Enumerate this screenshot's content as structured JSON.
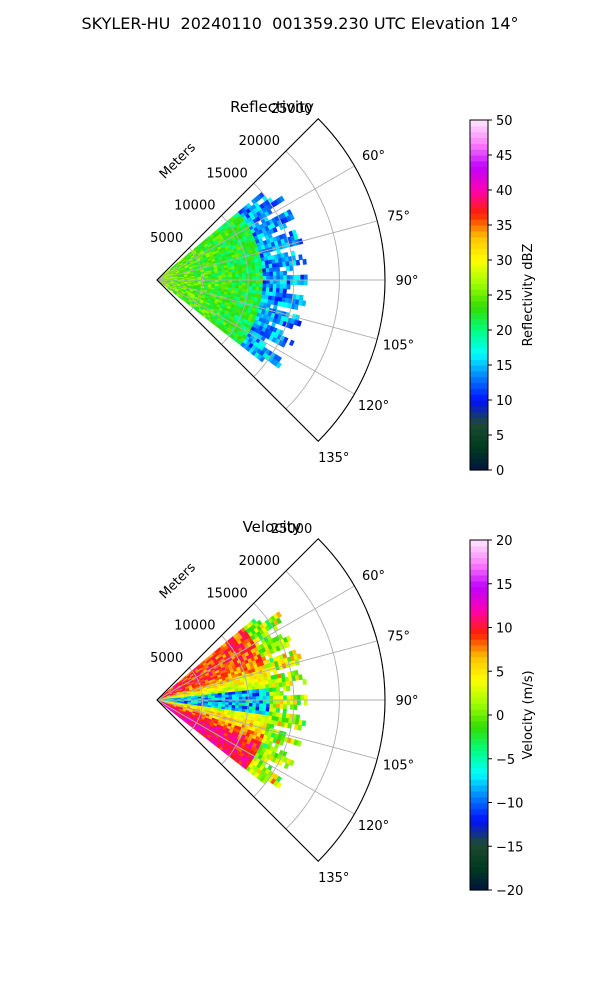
{
  "figure": {
    "title": "SKYLER-HU  20240110  001359.230 UTC Elevation 14°"
  },
  "chart_data": [
    {
      "type": "heatmap",
      "projection": "polar-sector",
      "title": "Reflectivity",
      "radial_label": "Meters",
      "radial_ticks": [
        5000,
        10000,
        15000,
        20000,
        25000
      ],
      "radial_tick_labels": [
        "5000",
        "10000",
        "15000",
        "20000",
        "25000"
      ],
      "rlim": [
        0,
        25000
      ],
      "angle_ticks_deg": [
        60,
        75,
        90,
        105,
        120,
        135
      ],
      "angle_tick_labels": [
        "60°",
        "75°",
        "90°",
        "105°",
        "120°",
        "135°"
      ],
      "sector_deg": [
        45,
        135
      ],
      "data_extent": {
        "azimuth_deg": [
          50,
          128
        ],
        "range_m": [
          0,
          16500
        ]
      },
      "field_description": {
        "near_range_dbz": 26,
        "mid_range_dbz": 22,
        "outer_edge_dbz": 14
      },
      "colorbar": {
        "label": "Reflectivity dBZ",
        "min": 0,
        "max": 50,
        "ticks": [
          0,
          5,
          10,
          15,
          20,
          25,
          30,
          35,
          40,
          45,
          50
        ],
        "tick_labels": [
          "0",
          "5",
          "10",
          "15",
          "20",
          "25",
          "30",
          "35",
          "40",
          "45",
          "50"
        ],
        "colormap": [
          "#00143f",
          "#003c1f",
          "#1f4a34",
          "#0010ff",
          "#0080ff",
          "#00ffff",
          "#00ff80",
          "#33dd00",
          "#a0ff00",
          "#ffff00",
          "#ffc000",
          "#ff2000",
          "#ff00b0",
          "#c000ff",
          "#ff80ff",
          "#ffe8ff"
        ]
      },
      "grid": true
    },
    {
      "type": "heatmap",
      "projection": "polar-sector",
      "title": "Velocity",
      "radial_label": "Meters",
      "radial_ticks": [
        5000,
        10000,
        15000,
        20000,
        25000
      ],
      "radial_tick_labels": [
        "5000",
        "10000",
        "15000",
        "20000",
        "25000"
      ],
      "rlim": [
        0,
        25000
      ],
      "angle_ticks_deg": [
        60,
        75,
        90,
        105,
        120,
        135
      ],
      "angle_tick_labels": [
        "60°",
        "75°",
        "90°",
        "105°",
        "120°",
        "135°"
      ],
      "sector_deg": [
        45,
        135
      ],
      "data_extent": {
        "azimuth_deg": [
          50,
          128
        ],
        "range_m": [
          0,
          16500
        ]
      },
      "field_description": {
        "north_sector_ms": 10,
        "center_band_ms": -8,
        "south_sector_ms": 12
      },
      "colorbar": {
        "label": "Velocity (m/s)",
        "min": -20,
        "max": 20,
        "ticks": [
          -20,
          -15,
          -10,
          -5,
          0,
          5,
          10,
          15,
          20
        ],
        "tick_labels": [
          "−20",
          "−15",
          "−10",
          "−5",
          "0",
          "5",
          "10",
          "15",
          "20"
        ],
        "colormap": [
          "#00143f",
          "#003c1f",
          "#1f4a34",
          "#0010ff",
          "#0080ff",
          "#00ffff",
          "#00ff80",
          "#33dd00",
          "#a0ff00",
          "#ffff00",
          "#ffc000",
          "#ff2000",
          "#ff00b0",
          "#c000ff",
          "#ff80ff",
          "#ffe8ff"
        ]
      },
      "grid": true
    }
  ]
}
